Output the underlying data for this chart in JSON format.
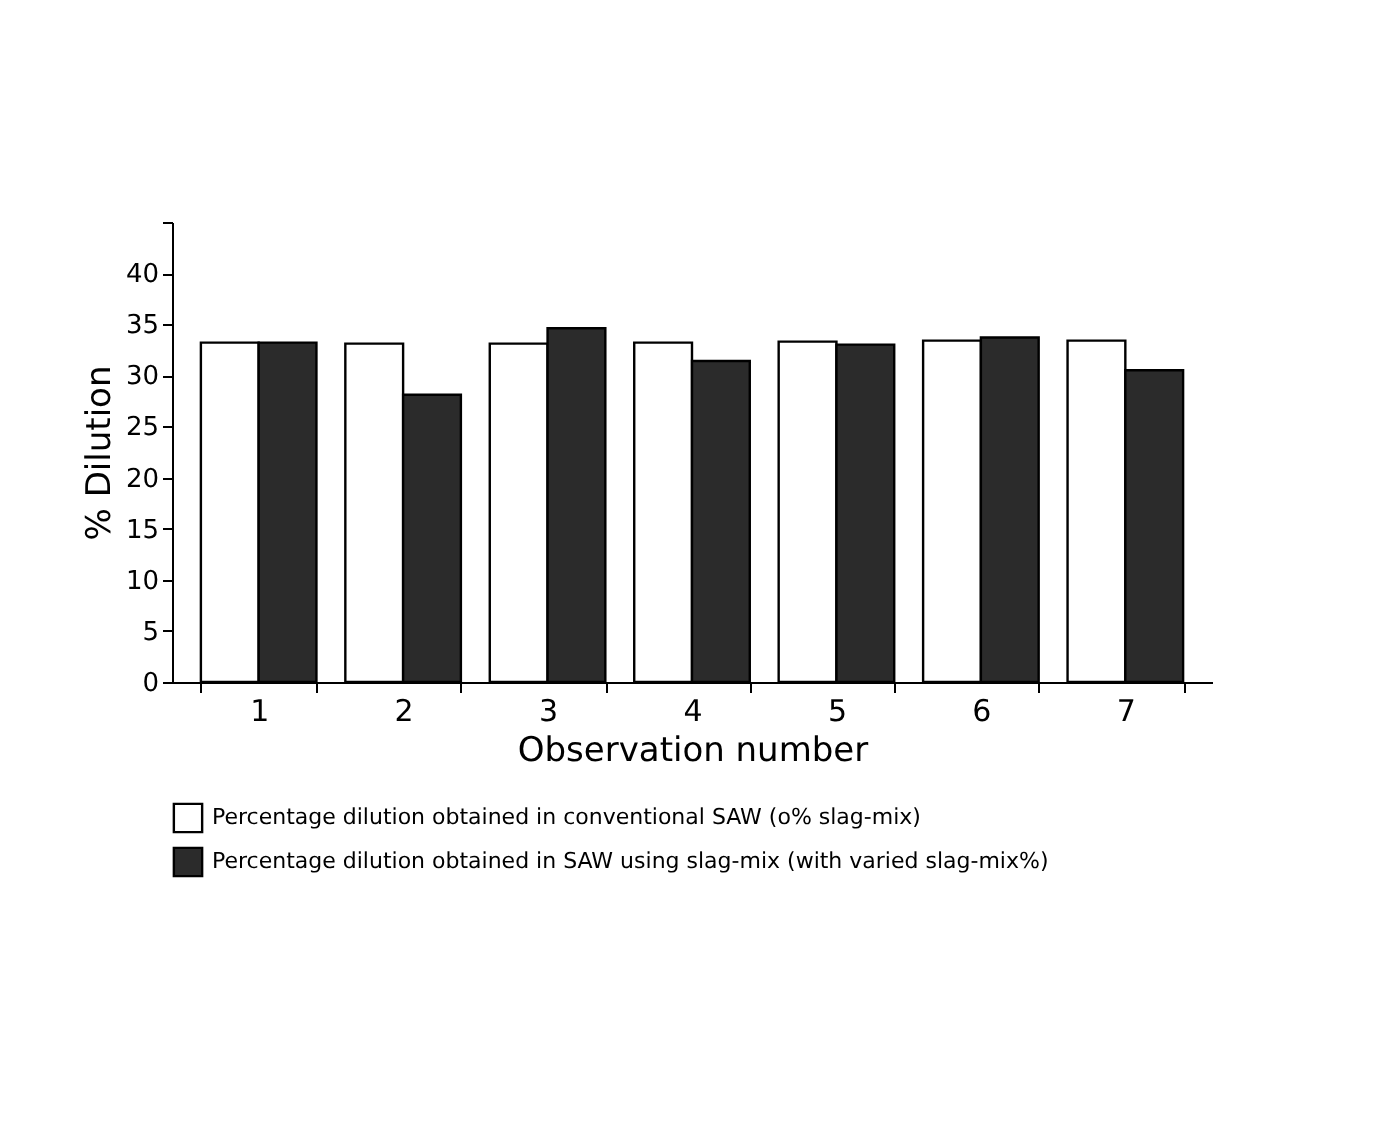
{
  "chart_data": {
    "type": "bar",
    "xlabel": "Observation number",
    "ylabel": "% Dilution",
    "categories": [
      "1",
      "2",
      "3",
      "4",
      "5",
      "6",
      "7"
    ],
    "series": [
      {
        "name": "Percentage dilution obtained in conventional SAW (o% slag-mix)",
        "color": "#ffffff",
        "values": [
          33.2,
          33.1,
          33.1,
          33.2,
          33.3,
          33.4,
          33.4
        ]
      },
      {
        "name": "Percentage dilution obtained in SAW using slag-mix (with varied slag-mix%)",
        "color": "#2b2b2b",
        "values": [
          33.2,
          28.1,
          34.6,
          31.4,
          33.0,
          33.7,
          30.5
        ]
      }
    ],
    "ylim": [
      0,
      45
    ],
    "yticks": [
      0,
      5,
      10,
      15,
      20,
      25,
      30,
      35,
      40,
      {
        "value": 45,
        "label": null
      }
    ],
    "grid": false,
    "legend": "bottom left"
  }
}
